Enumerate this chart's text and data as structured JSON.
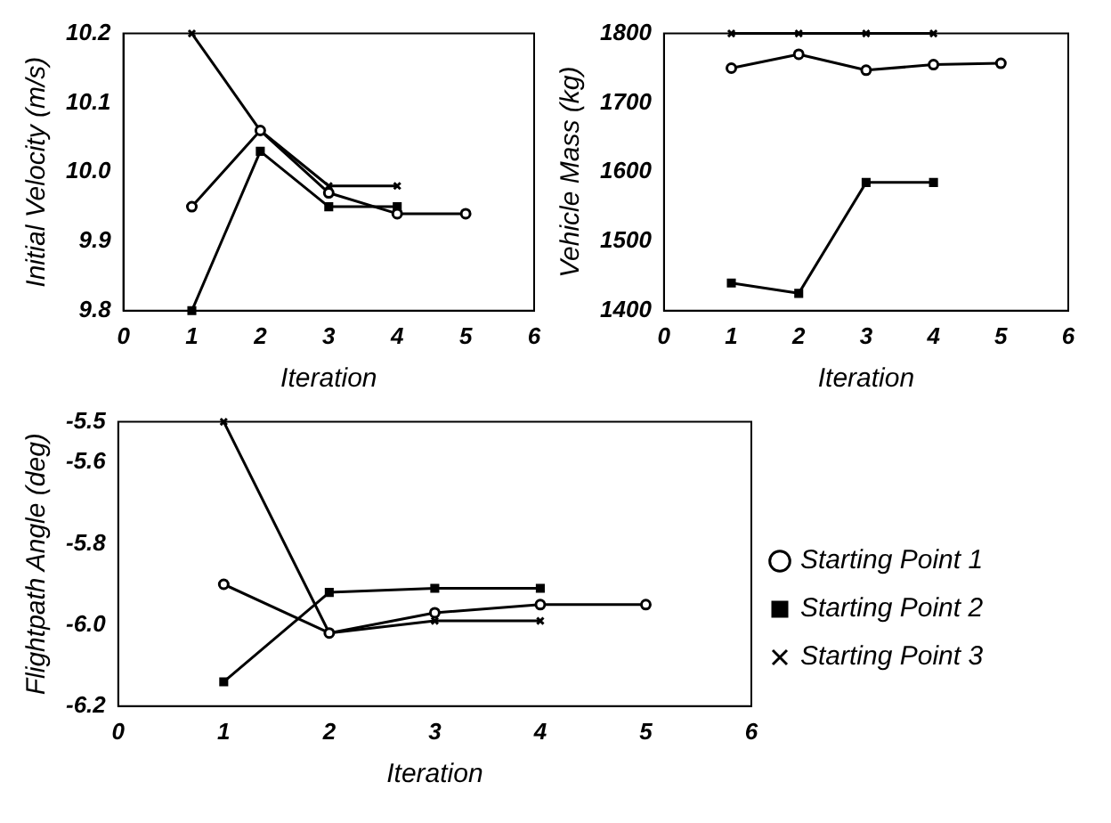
{
  "chart_data": [
    {
      "type": "line",
      "xlabel": "Iteration",
      "ylabel": "Initial Velocity (m/s)",
      "xlim": [
        0,
        6
      ],
      "xticks": [
        0,
        1,
        2,
        3,
        4,
        5,
        6
      ],
      "ylim": [
        9.8,
        10.2
      ],
      "yticks": [
        9.8,
        9.9,
        {
          "value": 10,
          "label": "10.0"
        },
        10.1,
        10.2
      ],
      "grid": false,
      "legend": false,
      "series": [
        {
          "color": "#000000",
          "marker": "circle",
          "x": [
            1,
            2,
            3,
            4,
            5
          ],
          "values": [
            9.95,
            10.06,
            9.97,
            9.94,
            9.94
          ]
        },
        {
          "color": "#000000",
          "marker": "square",
          "x": [
            1,
            2,
            3,
            4
          ],
          "values": [
            9.8,
            10.03,
            9.95,
            9.95
          ]
        },
        {
          "color": "#000000",
          "marker": "cross",
          "x": [
            1,
            2,
            3,
            4
          ],
          "values": [
            10.2,
            10.06,
            9.98,
            9.98
          ]
        }
      ]
    },
    {
      "type": "line",
      "xlabel": "Iteration",
      "ylabel": "Vehicle Mass (kg)",
      "xlim": [
        0,
        6
      ],
      "xticks": [
        0,
        1,
        2,
        3,
        4,
        5,
        6
      ],
      "ylim": [
        1400,
        1800
      ],
      "yticks": [
        1400,
        1500,
        1600,
        1700,
        1800
      ],
      "grid": false,
      "legend": false,
      "series": [
        {
          "color": "#000000",
          "marker": "circle",
          "x": [
            1,
            2,
            3,
            4,
            5
          ],
          "values": [
            1750,
            1770,
            1747,
            1755,
            1757
          ]
        },
        {
          "color": "#000000",
          "marker": "square",
          "x": [
            1,
            2,
            3,
            4
          ],
          "values": [
            1440,
            1425,
            1585,
            1585
          ]
        },
        {
          "color": "#000000",
          "marker": "cross",
          "x": [
            1,
            2,
            3,
            4
          ],
          "values": [
            1800,
            1800,
            1800,
            1800
          ]
        }
      ]
    },
    {
      "type": "line",
      "xlabel": "Iteration",
      "ylabel": "Flightpath Angle (deg)",
      "xlim": [
        0,
        6
      ],
      "xticks": [
        0,
        1,
        2,
        3,
        4,
        5,
        6
      ],
      "ylim": [
        -6.2,
        -5.5
      ],
      "yticks": [
        -6.2,
        {
          "value": -6,
          "label": "-6.0"
        },
        -5.8,
        -5.6,
        -5.5
      ],
      "grid": false,
      "legend": "right",
      "series": [
        {
          "name": "Starting Point 1",
          "color": "#000000",
          "marker": "circle",
          "x": [
            1,
            2,
            3,
            4,
            5
          ],
          "values": [
            -5.9,
            -6.02,
            -5.97,
            -5.95,
            -5.95
          ]
        },
        {
          "name": "Starting Point 2",
          "color": "#000000",
          "marker": "square",
          "x": [
            1,
            2,
            3,
            4
          ],
          "values": [
            -6.14,
            -5.92,
            -5.91,
            -5.91
          ]
        },
        {
          "name": "Starting Point 3",
          "color": "#000000",
          "marker": "cross",
          "x": [
            1,
            2,
            3,
            4
          ],
          "values": [
            -5.5,
            -6.02,
            -5.99,
            -5.99
          ]
        }
      ]
    }
  ]
}
